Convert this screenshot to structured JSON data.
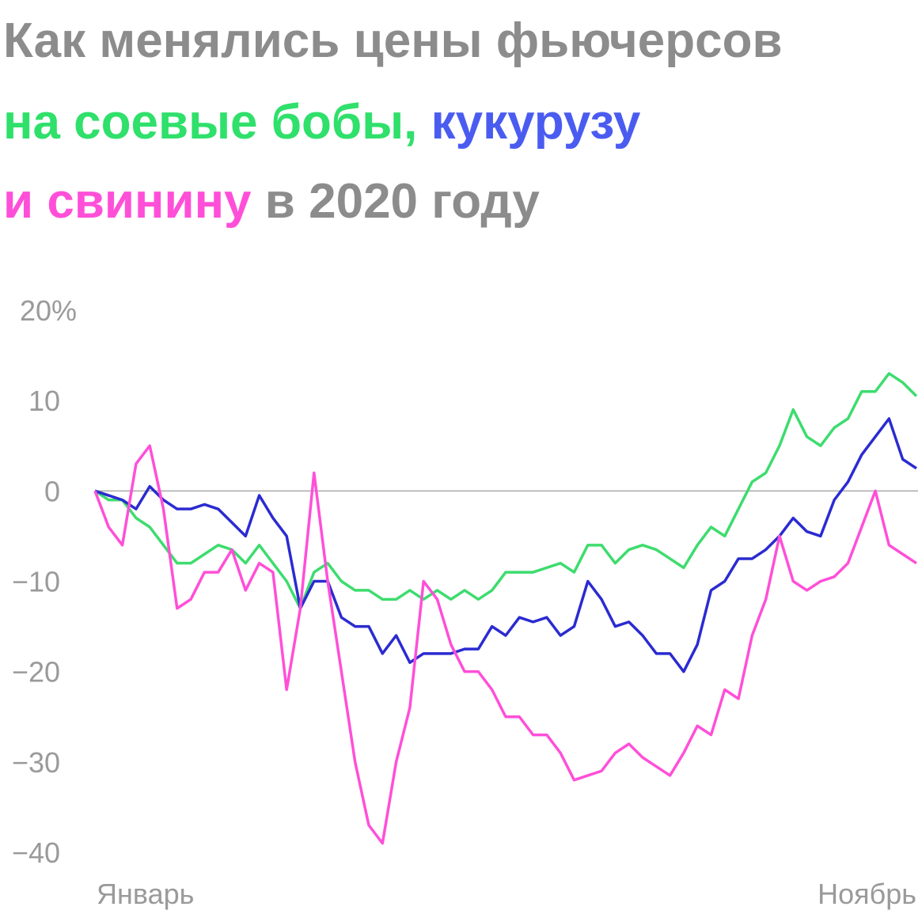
{
  "chart_data": {
    "type": "line",
    "title": [
      [
        {
          "text": "Как менялись цены фьючерсов",
          "color": "#8c8c8c"
        }
      ],
      [
        {
          "text": "на соевые бобы,",
          "color": "#2fe06b"
        },
        {
          "text": " кукурузу",
          "color": "#4a5cf0"
        }
      ],
      [
        {
          "text": "и свинину",
          "color": "#ff4fd8"
        },
        {
          "text": " в 2020 году",
          "color": "#8c8c8c"
        }
      ]
    ],
    "categories": [
      "Январь",
      null,
      null,
      null,
      null,
      null,
      null,
      null,
      null,
      null,
      null,
      null,
      null,
      null,
      null,
      null,
      null,
      null,
      null,
      null,
      null,
      null,
      null,
      null,
      null,
      null,
      null,
      null,
      null,
      null,
      null,
      null,
      null,
      null,
      null,
      null,
      null,
      null,
      null,
      null,
      null,
      null,
      null,
      null,
      null,
      null,
      null,
      null,
      null,
      null,
      null,
      null,
      null,
      null,
      null,
      null,
      null,
      null,
      null,
      null,
      "Ноябрь"
    ],
    "series": [
      {
        "color": "#3ddc6e",
        "values": [
          0,
          -1,
          -1,
          -3,
          -4,
          -6,
          -8,
          -8,
          -7,
          -6,
          -6.5,
          -8,
          -6,
          -8,
          -10,
          -13,
          -9,
          -8,
          -10,
          -11,
          -11,
          -12,
          -12,
          -11,
          -12,
          -11,
          -12,
          -11,
          -12,
          -11,
          -9,
          -9,
          -9,
          -8.5,
          -8,
          -9,
          -6,
          -6,
          -8,
          -6.5,
          -6,
          -6.5,
          -7.5,
          -8.5,
          -6,
          -4,
          -5,
          -2,
          1,
          2,
          5,
          9,
          6,
          5,
          7,
          8,
          11,
          11,
          13,
          12,
          10.5
        ]
      },
      {
        "color": "#2b2bd1",
        "values": [
          0,
          -0.5,
          -1,
          -2,
          0.5,
          -1,
          -2,
          -2,
          -1.5,
          -2,
          -3.5,
          -5,
          -0.5,
          -3,
          -5,
          -13,
          -10,
          -10,
          -14,
          -15,
          -15,
          -18,
          -16,
          -19,
          -18,
          -18,
          -18,
          -17.5,
          -17.5,
          -15,
          -16,
          -14,
          -14.5,
          -14,
          -16,
          -15,
          -10,
          -12,
          -15,
          -14.5,
          -16,
          -18,
          -18,
          -20,
          -17,
          -11,
          -10,
          -7.5,
          -7.5,
          -6.5,
          -5,
          -3,
          -4.5,
          -5,
          -1,
          1,
          4,
          6,
          8,
          3.5,
          2.5
        ]
      },
      {
        "color": "#ff4fd8",
        "values": [
          0,
          -4,
          -6,
          3,
          5,
          -2,
          -13,
          -12,
          -9,
          -9,
          -6.5,
          -11,
          -8,
          -9,
          -22,
          -13,
          2,
          -10,
          -20,
          -30,
          -37,
          -39,
          -30,
          -24,
          -10,
          -12,
          -17,
          -20,
          -20,
          -22,
          -25,
          -25,
          -27,
          -27,
          -29,
          -32,
          -31.5,
          -31,
          -29,
          -28,
          -29.5,
          -30.5,
          -31.5,
          -29,
          -26,
          -27,
          -22,
          -23,
          -16,
          -12,
          -5,
          -10,
          -11,
          -10,
          -9.5,
          -8,
          -4,
          0,
          -6,
          -7,
          -8
        ]
      }
    ],
    "ylim": [
      -40,
      20
    ],
    "yticks": [
      {
        "value": 20,
        "label": "20%"
      },
      10,
      0,
      {
        "value": -10,
        "label": "−10"
      },
      {
        "value": -20,
        "label": "−20"
      },
      {
        "value": -30,
        "label": "−30"
      },
      {
        "value": -40,
        "label": "−40"
      }
    ],
    "zero_line": true
  }
}
